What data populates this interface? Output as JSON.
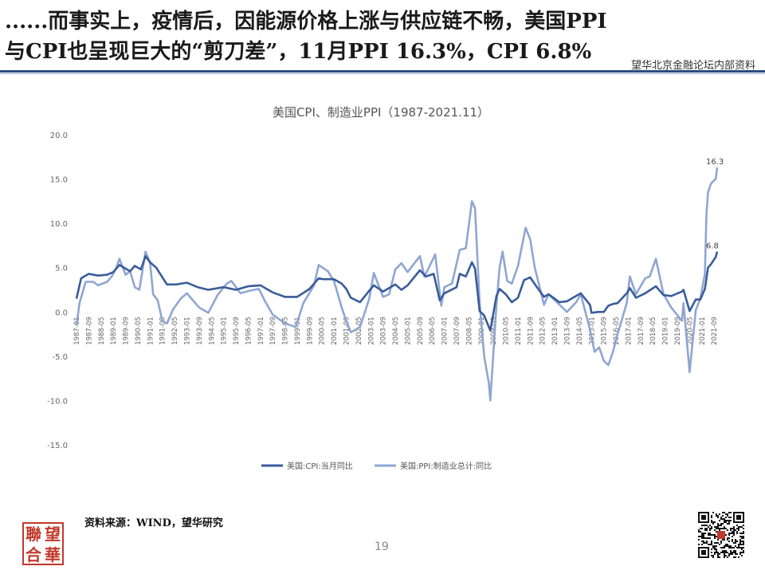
{
  "headline": {
    "line1": "......而事实上，疫情后，因能源价格上涨与供应链不畅，美国PPI",
    "line2": "与CPI也呈现巨大的“剪刀差”，11月PPI 16.3%，CPI 6.8%"
  },
  "watermark": "望华北京金融论坛内部资料",
  "source": "资料来源：WIND，望华研究",
  "page_number": "19",
  "logo_chars": [
    "聯",
    "望",
    "合",
    "華"
  ],
  "colors": {
    "cpi": "#3a5c9a",
    "ppi": "#8fa6d2",
    "rule": "#2f4a7a"
  },
  "chart_data": {
    "type": "line",
    "title": "美国CPI、制造业PPI（1987-2021.11）",
    "ylim": [
      -15,
      20
    ],
    "yticks": [
      "20.0",
      "15.0",
      "10.0",
      "5.0",
      "0.0",
      "-5.0",
      "-10.0",
      "-15.0"
    ],
    "grid": false,
    "legend": "bottom",
    "x_start": "1987-01",
    "x_end": "2021-11",
    "xticks": [
      "1987-01",
      "1987-09",
      "1988-05",
      "1989-01",
      "1989-09",
      "1990-05",
      "1991-01",
      "1991-09",
      "1992-05",
      "1993-01",
      "1993-09",
      "1994-05",
      "1995-01",
      "1995-09",
      "1996-05",
      "1997-01",
      "1997-09",
      "1998-05",
      "1999-01",
      "1999-09",
      "2000-05",
      "2001-01",
      "2001-09",
      "2002-05",
      "2003-01",
      "2003-09",
      "2004-05",
      "2005-01",
      "2005-09",
      "2006-05",
      "2007-01",
      "2007-09",
      "2008-05",
      "2009-01",
      "2009-09",
      "2010-05",
      "2011-01",
      "2011-09",
      "2012-05",
      "2013-01",
      "2013-09",
      "2014-05",
      "2015-01",
      "2015-09",
      "2016-05",
      "2017-01",
      "2017-09",
      "2018-05",
      "2019-01",
      "2019-09",
      "2020-05",
      "2021-01",
      "2021-09"
    ],
    "annotations": [
      {
        "text": "16.3",
        "series": "美国:PPI:制造业总计:同比",
        "date": "2021-11"
      },
      {
        "text": "6.8",
        "series": "美国:CPI:当月同比",
        "date": "2021-11"
      }
    ],
    "series": [
      {
        "name": "美国:CPI:当月同比",
        "points": [
          [
            "1987-01",
            1.5
          ],
          [
            "1987-04",
            3.8
          ],
          [
            "1987-09",
            4.3
          ],
          [
            "1988-03",
            4.1
          ],
          [
            "1988-09",
            4.2
          ],
          [
            "1989-01",
            4.5
          ],
          [
            "1989-05",
            5.3
          ],
          [
            "1989-12",
            4.6
          ],
          [
            "1990-03",
            5.2
          ],
          [
            "1990-07",
            4.8
          ],
          [
            "1990-10",
            6.3
          ],
          [
            "1991-01",
            5.6
          ],
          [
            "1991-05",
            5.0
          ],
          [
            "1991-12",
            3.1
          ],
          [
            "1992-06",
            3.1
          ],
          [
            "1993-01",
            3.3
          ],
          [
            "1993-08",
            2.8
          ],
          [
            "1994-03",
            2.5
          ],
          [
            "1995-01",
            2.8
          ],
          [
            "1995-09",
            2.5
          ],
          [
            "1996-05",
            2.9
          ],
          [
            "1997-01",
            3.0
          ],
          [
            "1997-09",
            2.2
          ],
          [
            "1998-05",
            1.7
          ],
          [
            "1999-01",
            1.7
          ],
          [
            "1999-09",
            2.6
          ],
          [
            "2000-03",
            3.8
          ],
          [
            "2000-06",
            3.7
          ],
          [
            "2001-01",
            3.7
          ],
          [
            "2001-06",
            3.2
          ],
          [
            "2001-09",
            2.6
          ],
          [
            "2001-12",
            1.6
          ],
          [
            "2002-06",
            1.1
          ],
          [
            "2002-12",
            2.4
          ],
          [
            "2003-03",
            3.0
          ],
          [
            "2003-09",
            2.3
          ],
          [
            "2004-05",
            3.1
          ],
          [
            "2004-09",
            2.5
          ],
          [
            "2005-01",
            3.0
          ],
          [
            "2005-09",
            4.7
          ],
          [
            "2006-01",
            4.0
          ],
          [
            "2006-06",
            4.3
          ],
          [
            "2006-10",
            1.3
          ],
          [
            "2007-01",
            2.1
          ],
          [
            "2007-09",
            2.8
          ],
          [
            "2007-11",
            4.3
          ],
          [
            "2008-03",
            4.0
          ],
          [
            "2008-07",
            5.6
          ],
          [
            "2008-09",
            4.9
          ],
          [
            "2008-12",
            0.1
          ],
          [
            "2009-03",
            -0.4
          ],
          [
            "2009-07",
            -2.1
          ],
          [
            "2009-11",
            1.8
          ],
          [
            "2010-01",
            2.6
          ],
          [
            "2010-05",
            2.0
          ],
          [
            "2010-09",
            1.1
          ],
          [
            "2011-01",
            1.6
          ],
          [
            "2011-05",
            3.6
          ],
          [
            "2011-09",
            3.9
          ],
          [
            "2012-01",
            2.9
          ],
          [
            "2012-06",
            1.7
          ],
          [
            "2012-09",
            2.0
          ],
          [
            "2013-04",
            1.1
          ],
          [
            "2013-09",
            1.2
          ],
          [
            "2014-06",
            2.1
          ],
          [
            "2014-12",
            0.8
          ],
          [
            "2015-01",
            -0.1
          ],
          [
            "2015-05",
            0.0
          ],
          [
            "2015-09",
            0.0
          ],
          [
            "2015-12",
            0.7
          ],
          [
            "2016-03",
            0.9
          ],
          [
            "2016-06",
            1.0
          ],
          [
            "2016-12",
            2.1
          ],
          [
            "2017-02",
            2.7
          ],
          [
            "2017-06",
            1.6
          ],
          [
            "2017-12",
            2.1
          ],
          [
            "2018-07",
            2.9
          ],
          [
            "2018-12",
            1.9
          ],
          [
            "2019-05",
            1.8
          ],
          [
            "2019-12",
            2.3
          ],
          [
            "2020-01",
            2.5
          ],
          [
            "2020-05",
            0.1
          ],
          [
            "2020-09",
            1.4
          ],
          [
            "2020-12",
            1.4
          ],
          [
            "2021-03",
            2.6
          ],
          [
            "2021-05",
            5.0
          ],
          [
            "2021-07",
            5.4
          ],
          [
            "2021-10",
            6.2
          ],
          [
            "2021-11",
            6.8
          ]
        ]
      },
      {
        "name": "美国:PPI:制造业总计:同比",
        "points": [
          [
            "1987-01",
            -1.5
          ],
          [
            "1987-03",
            1.0
          ],
          [
            "1987-07",
            3.4
          ],
          [
            "1987-12",
            3.4
          ],
          [
            "1988-03",
            3.0
          ],
          [
            "1988-09",
            3.4
          ],
          [
            "1988-12",
            4.0
          ],
          [
            "1989-03",
            5.0
          ],
          [
            "1989-05",
            6.0
          ],
          [
            "1989-09",
            4.2
          ],
          [
            "1989-12",
            4.6
          ],
          [
            "1990-03",
            2.8
          ],
          [
            "1990-06",
            2.5
          ],
          [
            "1990-10",
            6.8
          ],
          [
            "1991-01",
            5.6
          ],
          [
            "1991-03",
            2.0
          ],
          [
            "1991-06",
            1.3
          ],
          [
            "1991-09",
            -1.0
          ],
          [
            "1991-12",
            -1.3
          ],
          [
            "1992-04",
            0.3
          ],
          [
            "1992-09",
            1.5
          ],
          [
            "1993-01",
            2.1
          ],
          [
            "1993-09",
            0.5
          ],
          [
            "1994-03",
            -0.1
          ],
          [
            "1994-09",
            1.9
          ],
          [
            "1995-03",
            3.2
          ],
          [
            "1995-06",
            3.5
          ],
          [
            "1995-12",
            2.1
          ],
          [
            "1996-06",
            2.4
          ],
          [
            "1996-12",
            2.6
          ],
          [
            "1997-04",
            1.2
          ],
          [
            "1997-09",
            -0.3
          ],
          [
            "1998-05",
            -1.3
          ],
          [
            "1998-12",
            -1.7
          ],
          [
            "1999-05",
            1.0
          ],
          [
            "1999-12",
            3.0
          ],
          [
            "2000-03",
            5.3
          ],
          [
            "2000-09",
            4.6
          ],
          [
            "2001-01",
            3.5
          ],
          [
            "2001-06",
            0.5
          ],
          [
            "2001-09",
            -1.0
          ],
          [
            "2001-12",
            -2.3
          ],
          [
            "2002-06",
            -1.7
          ],
          [
            "2002-12",
            1.5
          ],
          [
            "2003-03",
            4.4
          ],
          [
            "2003-09",
            1.7
          ],
          [
            "2004-01",
            2.0
          ],
          [
            "2004-05",
            4.8
          ],
          [
            "2004-09",
            5.5
          ],
          [
            "2005-01",
            4.5
          ],
          [
            "2005-09",
            6.3
          ],
          [
            "2005-12",
            4.0
          ],
          [
            "2006-04",
            5.4
          ],
          [
            "2006-07",
            6.5
          ],
          [
            "2006-11",
            0.7
          ],
          [
            "2007-01",
            2.8
          ],
          [
            "2007-06",
            3.2
          ],
          [
            "2007-11",
            7.0
          ],
          [
            "2008-03",
            7.2
          ],
          [
            "2008-07",
            12.5
          ],
          [
            "2008-09",
            11.7
          ],
          [
            "2008-12",
            1.0
          ],
          [
            "2009-03",
            -5.0
          ],
          [
            "2009-06",
            -8.0
          ],
          [
            "2009-07",
            -10.0
          ],
          [
            "2009-11",
            0.8
          ],
          [
            "2010-01",
            5.0
          ],
          [
            "2010-03",
            6.8
          ],
          [
            "2010-06",
            3.5
          ],
          [
            "2010-09",
            3.2
          ],
          [
            "2011-01",
            5.2
          ],
          [
            "2011-06",
            9.5
          ],
          [
            "2011-09",
            8.2
          ],
          [
            "2011-12",
            5.0
          ],
          [
            "2012-06",
            0.8
          ],
          [
            "2012-09",
            2.0
          ],
          [
            "2013-03",
            1.0
          ],
          [
            "2013-09",
            0.0
          ],
          [
            "2014-03",
            1.1
          ],
          [
            "2014-06",
            2.0
          ],
          [
            "2014-12",
            -2.0
          ],
          [
            "2015-03",
            -4.5
          ],
          [
            "2015-06",
            -4.0
          ],
          [
            "2015-09",
            -5.5
          ],
          [
            "2015-12",
            -6.0
          ],
          [
            "2016-03",
            -4.5
          ],
          [
            "2016-06",
            -2.5
          ],
          [
            "2016-12",
            1.0
          ],
          [
            "2017-02",
            4.0
          ],
          [
            "2017-06",
            2.0
          ],
          [
            "2017-12",
            3.8
          ],
          [
            "2018-03",
            4.0
          ],
          [
            "2018-07",
            6.0
          ],
          [
            "2018-12",
            2.0
          ],
          [
            "2019-05",
            0.5
          ],
          [
            "2019-12",
            -1.0
          ],
          [
            "2020-01",
            1.0
          ],
          [
            "2020-05",
            -6.8
          ],
          [
            "2020-09",
            0.2
          ],
          [
            "2020-12",
            1.5
          ],
          [
            "2021-03",
            4.3
          ],
          [
            "2021-04",
            11.0
          ],
          [
            "2021-05",
            13.5
          ],
          [
            "2021-07",
            14.5
          ],
          [
            "2021-10",
            15.0
          ],
          [
            "2021-11",
            16.3
          ]
        ]
      }
    ]
  }
}
